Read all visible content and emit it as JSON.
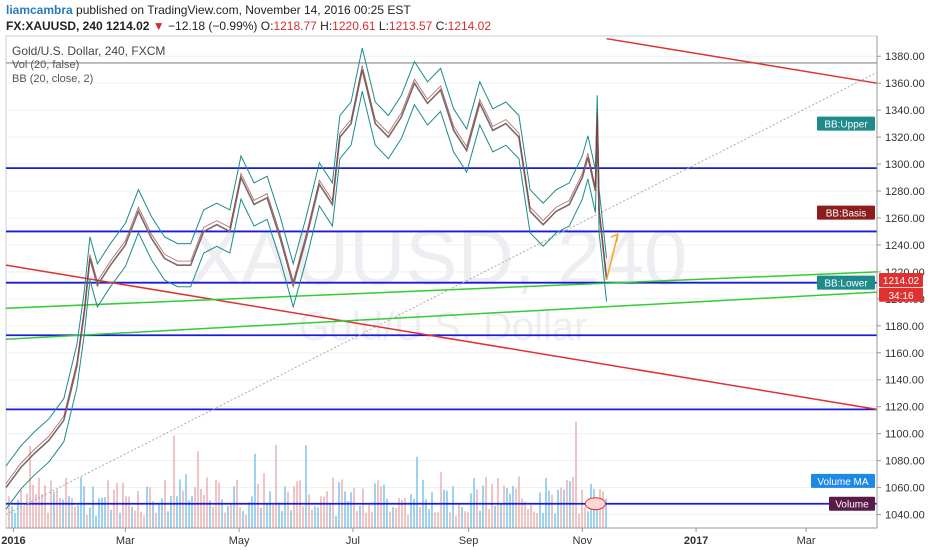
{
  "header": {
    "author": "liamcambra",
    "published_text": "published on TradingView.com, November 14, 2016 00:25 EST"
  },
  "quote": {
    "symbol": "FX:XAUUSD, 240",
    "last": "1214.02",
    "arrow": "▼",
    "change": "−12.18 (−0.99%)",
    "o_label": "O:",
    "o": "1218.77",
    "h_label": "H:",
    "h": "1220.61",
    "l_label": "L:",
    "l": "1213.57",
    "c_label": "C:",
    "c": "1214.02"
  },
  "legend": {
    "title": "Gold/U.S. Dollar, 240, FXCM",
    "vol": "Vol (20, false)",
    "bb": "BB (20, close, 2)"
  },
  "watermark": {
    "symbol": "XAUUSD, 240",
    "name": "Gold/U.S. Dollar"
  },
  "colors": {
    "price": "#7a6a6a",
    "bb_band": "#1e8a8a",
    "bb_basis": "#8b1d1d",
    "hline": "#1a1ad8",
    "green": "#33cc33",
    "red": "#e03030",
    "gray_line": "#888888",
    "arrow": "#f5a623",
    "volume": "#7fc3e8"
  },
  "chart_data": {
    "type": "line",
    "y_range": [
      1030,
      1395
    ],
    "y_ticks": [
      1040,
      1060,
      1080,
      1100,
      1120,
      1140,
      1160,
      1180,
      1200,
      1220,
      1240,
      1260,
      1280,
      1300,
      1320,
      1340,
      1360,
      1380
    ],
    "x_labels": [
      "2016",
      "Mar",
      "May",
      "Jul",
      "Sep",
      "Nov",
      "2017",
      "Mar"
    ],
    "price_series": {
      "name": "XAUUSD",
      "points": [
        [
          "2015-12-28",
          1060
        ],
        [
          "2016-01-05",
          1075
        ],
        [
          "2016-01-12",
          1085
        ],
        [
          "2016-01-20",
          1095
        ],
        [
          "2016-01-28",
          1110
        ],
        [
          "2016-02-04",
          1150
        ],
        [
          "2016-02-08",
          1190
        ],
        [
          "2016-02-11",
          1230
        ],
        [
          "2016-02-15",
          1210
        ],
        [
          "2016-02-22",
          1225
        ],
        [
          "2016-03-01",
          1240
        ],
        [
          "2016-03-08",
          1265
        ],
        [
          "2016-03-15",
          1245
        ],
        [
          "2016-03-22",
          1230
        ],
        [
          "2016-03-29",
          1225
        ],
        [
          "2016-04-05",
          1225
        ],
        [
          "2016-04-12",
          1250
        ],
        [
          "2016-04-19",
          1255
        ],
        [
          "2016-04-26",
          1250
        ],
        [
          "2016-05-02",
          1290
        ],
        [
          "2016-05-09",
          1270
        ],
        [
          "2016-05-16",
          1275
        ],
        [
          "2016-05-23",
          1245
        ],
        [
          "2016-05-30",
          1210
        ],
        [
          "2016-06-06",
          1245
        ],
        [
          "2016-06-13",
          1285
        ],
        [
          "2016-06-20",
          1270
        ],
        [
          "2016-06-24",
          1320
        ],
        [
          "2016-06-30",
          1330
        ],
        [
          "2016-07-06",
          1370
        ],
        [
          "2016-07-13",
          1330
        ],
        [
          "2016-07-20",
          1320
        ],
        [
          "2016-07-27",
          1335
        ],
        [
          "2016-08-03",
          1360
        ],
        [
          "2016-08-10",
          1345
        ],
        [
          "2016-08-17",
          1355
        ],
        [
          "2016-08-24",
          1325
        ],
        [
          "2016-08-31",
          1310
        ],
        [
          "2016-09-07",
          1345
        ],
        [
          "2016-09-14",
          1325
        ],
        [
          "2016-09-21",
          1330
        ],
        [
          "2016-09-28",
          1320
        ],
        [
          "2016-10-04",
          1265
        ],
        [
          "2016-10-11",
          1255
        ],
        [
          "2016-10-18",
          1265
        ],
        [
          "2016-10-25",
          1270
        ],
        [
          "2016-11-01",
          1290
        ],
        [
          "2016-11-04",
          1305
        ],
        [
          "2016-11-08",
          1280
        ],
        [
          "2016-11-09",
          1335
        ],
        [
          "2016-11-10",
          1265
        ],
        [
          "2016-11-14",
          1214.02
        ]
      ]
    },
    "horizontal_levels": [
      1297,
      1250,
      1212,
      1173,
      1118,
      1048,
      1375
    ],
    "trendlines": [
      {
        "color": "red",
        "from": [
          "2015-12-28",
          1225
        ],
        "to": [
          "2017-04-08",
          1118
        ]
      },
      {
        "color": "red",
        "from": [
          "2016-11-14",
          1393
        ],
        "to": [
          "2017-04-08",
          1360
        ]
      },
      {
        "color": "green",
        "from": [
          "2015-12-28",
          1193
        ],
        "to": [
          "2017-04-08",
          1220
        ]
      },
      {
        "color": "green",
        "from": [
          "2015-12-28",
          1170
        ],
        "to": [
          "2017-04-08",
          1205
        ]
      },
      {
        "color": "gray",
        "from": [
          "2015-12-28",
          1040
        ],
        "to": [
          "2017-04-08",
          1368
        ]
      }
    ],
    "projection_arrow": {
      "from": [
        "2016-11-14",
        1214
      ],
      "to": [
        "2016-11-20",
        1248
      ]
    },
    "price_labels": [
      {
        "text": "BB:Upper",
        "value": 1330,
        "color": "teal"
      },
      {
        "text": "BB:Basis",
        "value": 1264,
        "color": "maroon"
      },
      {
        "text": "BB:Lower",
        "value": 1212,
        "color": "teal"
      },
      {
        "text": "1214.02",
        "value": 1214.02,
        "color": "red"
      },
      {
        "text": "34:16",
        "value": 1203,
        "color": "red"
      },
      {
        "text": "Volume MA",
        "value": 1065,
        "color": "blue"
      },
      {
        "text": "Volume",
        "value": 1048,
        "color": "purple"
      }
    ]
  }
}
